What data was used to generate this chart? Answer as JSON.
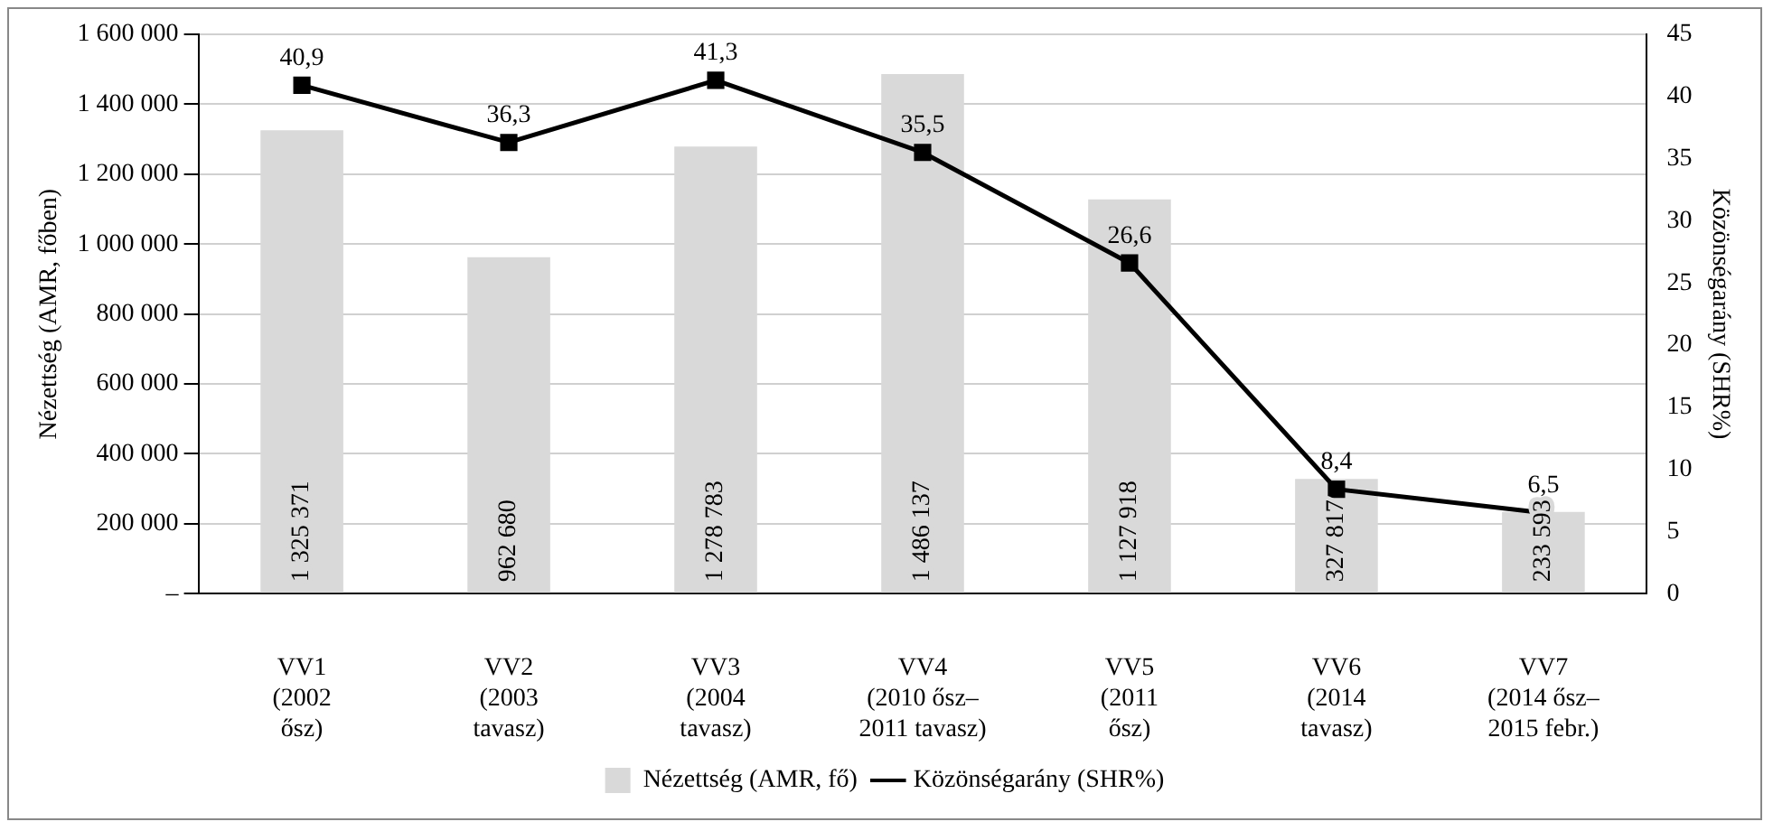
{
  "chart_data": {
    "type": "bar",
    "categories": [
      "VV1\n(2002\nősz)",
      "VV2\n(2003\ntavasz)",
      "VV3\n(2004\ntavasz)",
      "VV4\n(2010 ősz–\n2011 tavasz)",
      "VV5\n(2011\nősz)",
      "VV6\n(2014\ntavasz)",
      "VV7\n(2014 ősz–\n2015 febr.)"
    ],
    "ylabel": "Nézettség (AMR, főben)",
    "y2label": "Közönségarány (SHR%)",
    "series": [
      {
        "name": "Nézettség (AMR, fő)",
        "color": "#d9d9d9",
        "values": [
          1325371,
          962680,
          1278783,
          1486137,
          1127918,
          327817,
          233593
        ],
        "value_labels": [
          "1 325 371",
          "962 680",
          "1 278 783",
          "1 486 137",
          "1 127 918",
          "327 817",
          "233 593"
        ]
      },
      {
        "name": "Közönségarány (SHR%)",
        "type": "line",
        "axis": "y2",
        "color": "#000000",
        "marker": "square",
        "values": [
          40.9,
          36.3,
          41.3,
          35.5,
          26.6,
          8.4,
          6.5
        ],
        "value_labels": [
          "40,9",
          "36,3",
          "41,3",
          "35,5",
          "26,6",
          "8,4",
          "6,5"
        ]
      }
    ],
    "ylim": [
      0,
      1600000
    ],
    "yticks": [
      {
        "value": 0,
        "label": "–"
      },
      {
        "value": 200000,
        "label": "200 000"
      },
      {
        "value": 400000,
        "label": "400 000"
      },
      {
        "value": 600000,
        "label": "600 000"
      },
      {
        "value": 800000,
        "label": "800 000"
      },
      {
        "value": 1000000,
        "label": "1 000 000"
      },
      {
        "value": 1200000,
        "label": "1 200 000"
      },
      {
        "value": 1400000,
        "label": "1 400 000"
      },
      {
        "value": 1600000,
        "label": "1 600 000"
      }
    ],
    "y2lim": [
      0,
      45
    ],
    "y2ticks": [
      0,
      5,
      10,
      15,
      20,
      25,
      30,
      35,
      40,
      45
    ],
    "grid": "y",
    "legend": "bottom"
  }
}
